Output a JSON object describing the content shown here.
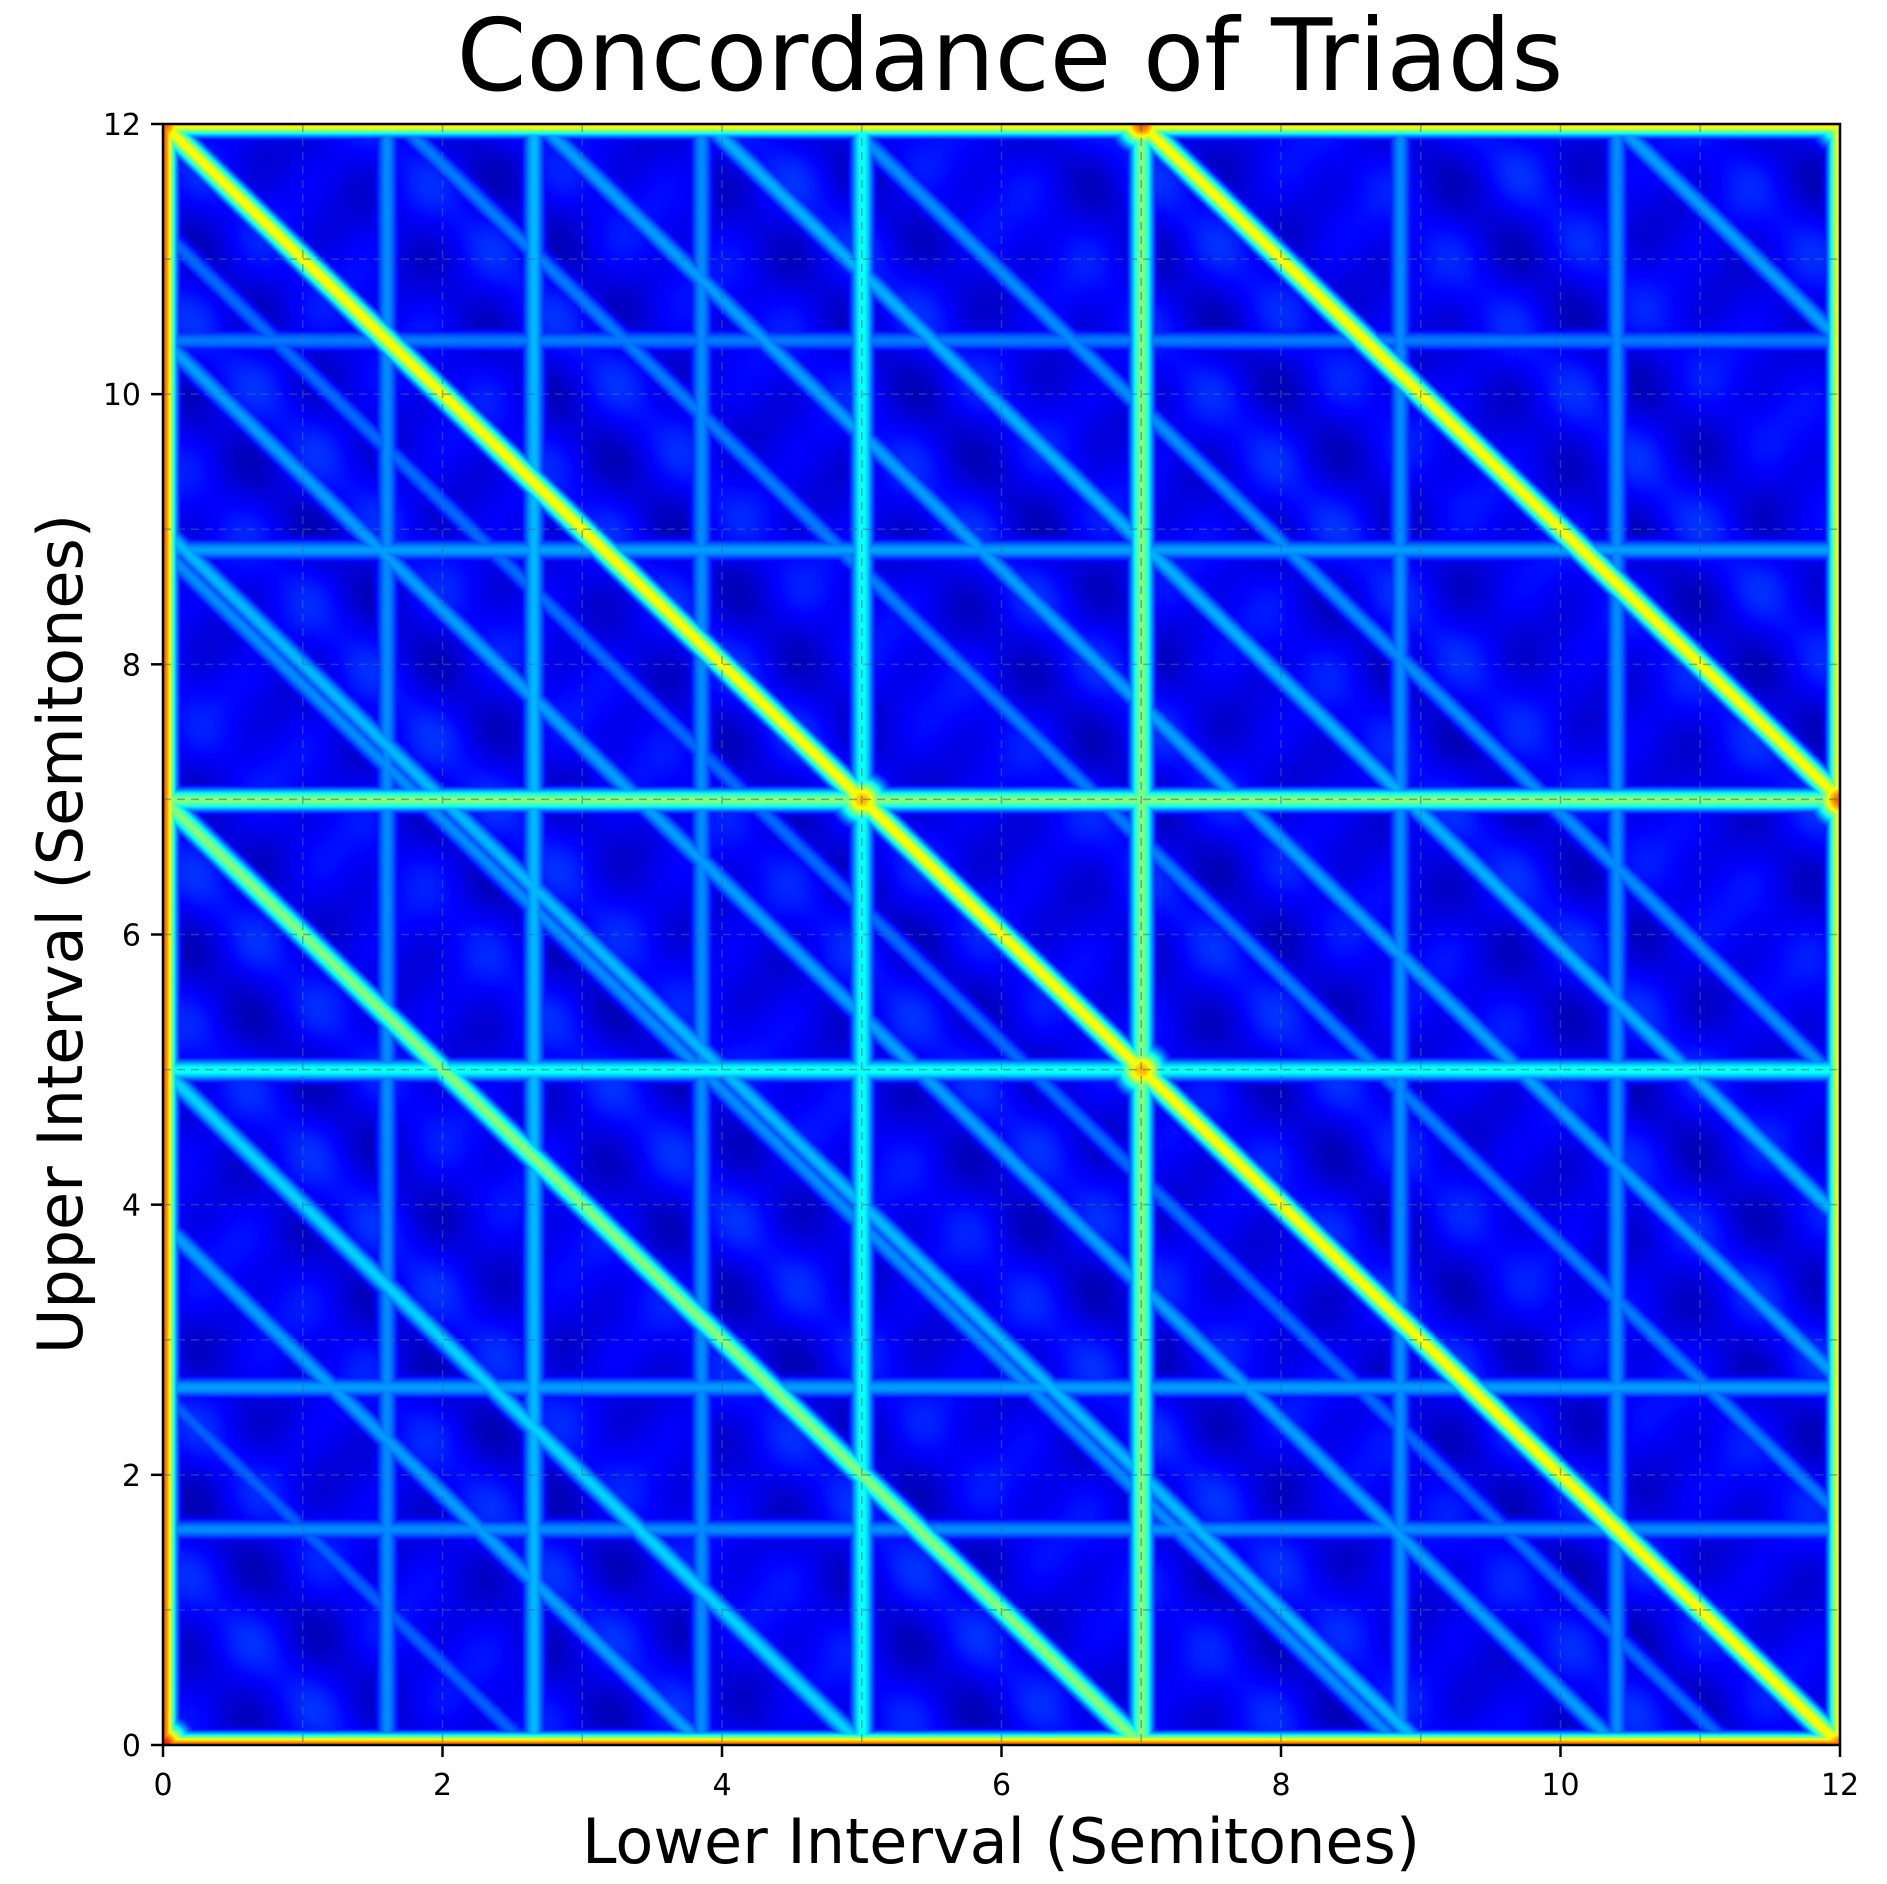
{
  "chart_data": {
    "type": "heatmap",
    "title": "Concordance of Triads",
    "xlabel": "Lower Interval (Semitones)",
    "ylabel": "Upper Interval (Semitones)",
    "xlim": [
      0,
      12
    ],
    "ylim": [
      0,
      12
    ],
    "xticks": [
      0,
      2,
      4,
      6,
      8,
      10,
      12
    ],
    "yticks": [
      0,
      2,
      4,
      6,
      8,
      10,
      12
    ],
    "grid": true,
    "colormap": "jet",
    "colormap_stops": [
      "#000080",
      "#0000ff",
      "#0080ff",
      "#00ffff",
      "#80ff80",
      "#ffff00",
      "#ff8000",
      "#ff0000"
    ],
    "background": "#0000e6",
    "features": {
      "vertical_bands": [
        {
          "x": 0,
          "level": 0.9
        },
        {
          "x": 5,
          "level": 0.45
        },
        {
          "x": 7,
          "level": 0.58
        },
        {
          "x": 12,
          "level": 0.75
        },
        {
          "x": 2.65,
          "level": 0.35
        },
        {
          "x": 3.85,
          "level": 0.3
        },
        {
          "x": 1.6,
          "level": 0.3
        },
        {
          "x": 10.4,
          "level": 0.3
        },
        {
          "x": 8.85,
          "level": 0.3
        }
      ],
      "horizontal_bands": [
        {
          "y": 0,
          "level": 0.9
        },
        {
          "y": 12,
          "level": 0.75
        },
        {
          "y": 7,
          "level": 0.58
        },
        {
          "y": 5,
          "level": 0.45
        },
        {
          "y": 8.85,
          "level": 0.32
        },
        {
          "y": 10.4,
          "level": 0.28
        },
        {
          "y": 2.65,
          "level": 0.32
        },
        {
          "y": 1.6,
          "level": 0.3
        }
      ],
      "diagonal_bands": [
        {
          "sum": 7,
          "level": 0.58
        },
        {
          "sum": 12,
          "level": 0.72
        },
        {
          "sum": 19,
          "level": 0.72
        },
        {
          "sum": 5,
          "level": 0.38
        },
        {
          "sum": 3.86,
          "level": 0.32
        },
        {
          "sum": 9,
          "level": 0.35
        },
        {
          "sum": 8.85,
          "level": 0.3
        },
        {
          "sum": 10.4,
          "level": 0.32
        },
        {
          "sum": 15.9,
          "level": 0.34
        },
        {
          "sum": 14.7,
          "level": 0.32
        },
        {
          "sum": 16.9,
          "level": 0.3
        },
        {
          "sum": 22.4,
          "level": 0.32
        },
        {
          "sum": 2.6,
          "level": 0.25
        },
        {
          "sum": 11.2,
          "level": 0.26
        },
        {
          "sum": 13.7,
          "level": 0.28
        }
      ],
      "corner_peaks": [
        {
          "x": 0,
          "y": 0,
          "level": 1.0
        },
        {
          "x": 7,
          "y": 12,
          "level": 0.9
        },
        {
          "x": 12,
          "y": 7,
          "level": 0.9
        },
        {
          "x": 5,
          "y": 7,
          "level": 0.8
        },
        {
          "x": 7,
          "y": 5,
          "level": 0.8
        },
        {
          "x": 12,
          "y": 0,
          "level": 0.9
        },
        {
          "x": 0,
          "y": 12,
          "level": 0.9
        },
        {
          "x": 12,
          "y": 12,
          "level": 0.7
        }
      ]
    }
  }
}
